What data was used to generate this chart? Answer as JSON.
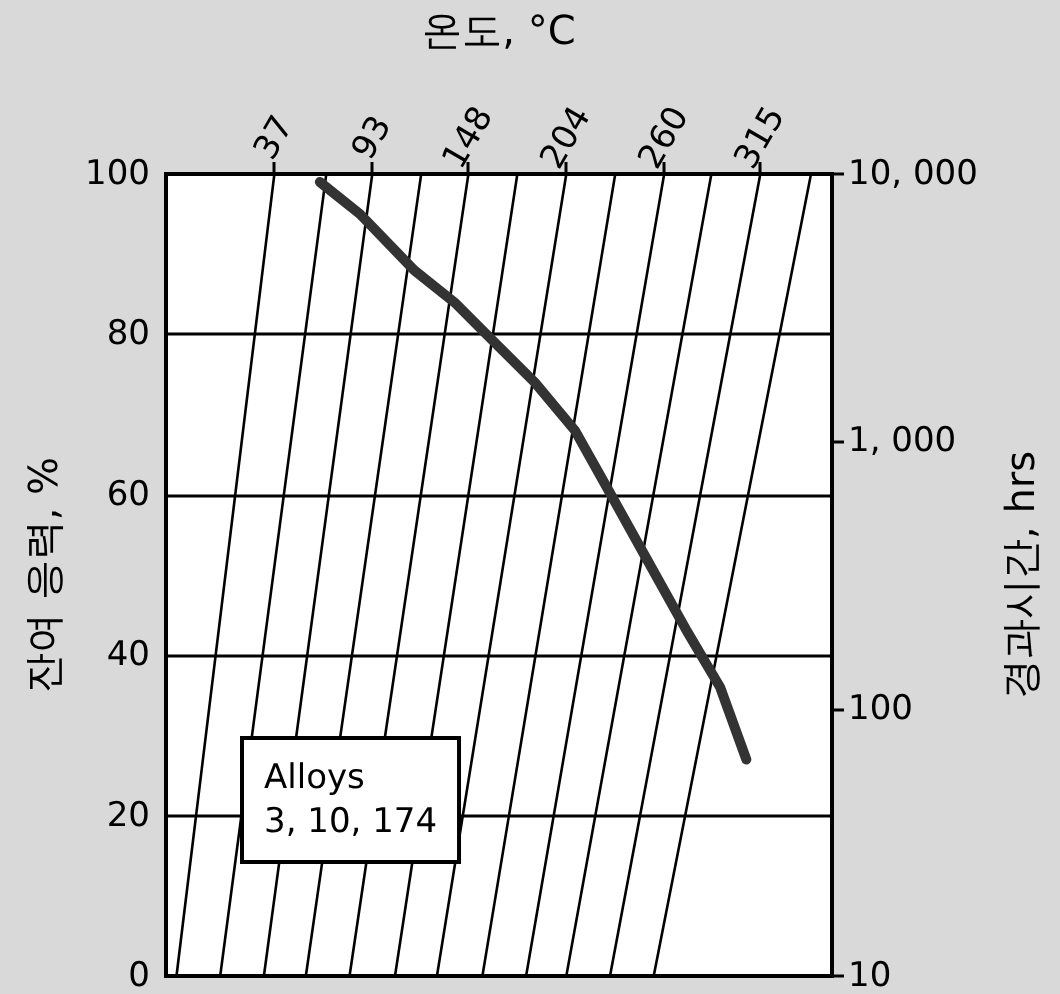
{
  "chart_data": {
    "type": "line",
    "xlabel": "온도, °C",
    "ylabel": "잔여 응력, %",
    "y2label": "경과시간, hrs",
    "annotations": [
      "Alloys\n3, 10, 174"
    ],
    "xlim": [
      -25,
      356
    ],
    "xticks": [
      37,
      93,
      148,
      204,
      260,
      315
    ],
    "ylim": [
      0,
      100
    ],
    "yticks": [
      0,
      20,
      40,
      60,
      80,
      100
    ],
    "y2lim": [
      10,
      10000
    ],
    "y2ticks": [
      10,
      100,
      {
        "value": 1000,
        "label": "1, 000"
      },
      {
        "value": 10000,
        "label": "10, 000"
      }
    ],
    "log": "y2",
    "grid": "y",
    "marker": "none",
    "line_style": "solid",
    "series": [
      {
        "color": "#000000",
        "x": [
          -19,
          37
        ],
        "values": [
          0,
          100
        ]
      },
      {
        "color": "#000000",
        "x": [
          6,
          66.7
        ],
        "values": [
          0,
          100
        ]
      },
      {
        "color": "#000000",
        "x": [
          31,
          93
        ],
        "values": [
          0,
          100
        ]
      },
      {
        "color": "#000000",
        "x": [
          55,
          121
        ],
        "values": [
          0,
          100
        ]
      },
      {
        "color": "#000000",
        "x": [
          80,
          148
        ],
        "values": [
          0,
          100
        ]
      },
      {
        "color": "#000000",
        "x": [
          106,
          176
        ],
        "values": [
          0,
          100
        ]
      },
      {
        "color": "#000000",
        "x": [
          130,
          204
        ],
        "values": [
          0,
          100
        ]
      },
      {
        "color": "#000000",
        "x": [
          156,
          232
        ],
        "values": [
          0,
          100
        ]
      },
      {
        "color": "#000000",
        "x": [
          181,
          260
        ],
        "values": [
          0,
          100
        ]
      },
      {
        "color": "#000000",
        "x": [
          204,
          287
        ],
        "values": [
          0,
          100
        ]
      },
      {
        "color": "#000000",
        "x": [
          229,
          315
        ],
        "values": [
          0,
          100
        ]
      },
      {
        "color": "#000000",
        "x": [
          254,
          344
        ],
        "values": [
          0,
          100
        ]
      },
      {
        "color": "#333333",
        "x": [
          63,
          86,
          117,
          140,
          163,
          186,
          209,
          227,
          250,
          273,
          292,
          307
        ],
        "values": [
          99,
          95,
          88,
          84,
          79,
          74,
          68,
          61,
          52,
          43,
          36,
          27
        ]
      }
    ]
  }
}
